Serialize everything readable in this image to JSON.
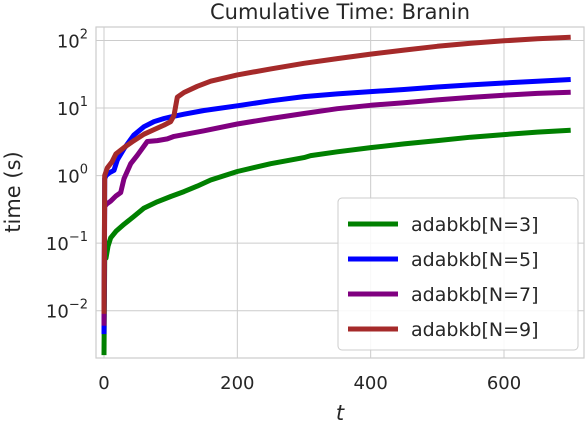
{
  "chart_data": {
    "type": "line",
    "title": "Cumulative Time: Branin",
    "xlabel": "t",
    "ylabel": "time (s)",
    "xlim": [
      -12,
      720
    ],
    "ylim_log10": [
      -2.7,
      2.2
    ],
    "yscale": "log",
    "grid": true,
    "legend_position": "lower-right",
    "x_ticks": [
      0,
      200,
      400,
      600
    ],
    "x_tick_labels": [
      "0",
      "200",
      "400",
      "600"
    ],
    "y_ticks_log10": [
      -2,
      -1,
      0,
      1,
      2
    ],
    "y_tick_labels": [
      {
        "base": "10",
        "exp": "−2"
      },
      {
        "base": "10",
        "exp": "−1"
      },
      {
        "base": "10",
        "exp": "0"
      },
      {
        "base": "10",
        "exp": "1"
      },
      {
        "base": "10",
        "exp": "2"
      }
    ],
    "series": [
      {
        "name": "adabkb[N=3]",
        "color": "#008000",
        "points": [
          [
            0,
            0.0022
          ],
          [
            1,
            0.06
          ],
          [
            3,
            0.06
          ],
          [
            6,
            0.09
          ],
          [
            10,
            0.12
          ],
          [
            18,
            0.15
          ],
          [
            30,
            0.19
          ],
          [
            45,
            0.25
          ],
          [
            60,
            0.33
          ],
          [
            80,
            0.41
          ],
          [
            100,
            0.49
          ],
          [
            120,
            0.58
          ],
          [
            140,
            0.7
          ],
          [
            160,
            0.86
          ],
          [
            200,
            1.15
          ],
          [
            250,
            1.5
          ],
          [
            300,
            1.85
          ],
          [
            310,
            1.98
          ],
          [
            350,
            2.25
          ],
          [
            400,
            2.6
          ],
          [
            450,
            2.95
          ],
          [
            500,
            3.3
          ],
          [
            550,
            3.7
          ],
          [
            600,
            4.05
          ],
          [
            650,
            4.4
          ],
          [
            700,
            4.7
          ]
        ]
      },
      {
        "name": "adabkb[N=5]",
        "color": "#0000ff",
        "points": [
          [
            0,
            0.0045
          ],
          [
            1,
            0.9
          ],
          [
            3,
            1.0
          ],
          [
            8,
            1.1
          ],
          [
            15,
            1.2
          ],
          [
            20,
            1.7
          ],
          [
            30,
            2.5
          ],
          [
            45,
            4.0
          ],
          [
            60,
            5.3
          ],
          [
            75,
            6.3
          ],
          [
            90,
            7.0
          ],
          [
            100,
            7.4
          ],
          [
            120,
            8.1
          ],
          [
            150,
            9.2
          ],
          [
            200,
            10.8
          ],
          [
            250,
            12.8
          ],
          [
            300,
            14.8
          ],
          [
            350,
            16.2
          ],
          [
            400,
            17.5
          ],
          [
            450,
            18.8
          ],
          [
            500,
            20.5
          ],
          [
            550,
            22.0
          ],
          [
            600,
            23.5
          ],
          [
            650,
            25.0
          ],
          [
            700,
            26.5
          ]
        ]
      },
      {
        "name": "adabkb[N=7]",
        "color": "#800080",
        "points": [
          [
            0,
            0.006
          ],
          [
            1,
            0.35
          ],
          [
            4,
            0.38
          ],
          [
            10,
            0.42
          ],
          [
            18,
            0.5
          ],
          [
            25,
            0.56
          ],
          [
            30,
            0.9
          ],
          [
            40,
            1.5
          ],
          [
            50,
            2.0
          ],
          [
            65,
            3.2
          ],
          [
            80,
            3.3
          ],
          [
            95,
            3.5
          ],
          [
            105,
            3.8
          ],
          [
            150,
            4.6
          ],
          [
            200,
            5.8
          ],
          [
            250,
            7.0
          ],
          [
            300,
            8.3
          ],
          [
            350,
            9.8
          ],
          [
            400,
            11.0
          ],
          [
            450,
            12.0
          ],
          [
            500,
            13.2
          ],
          [
            550,
            14.4
          ],
          [
            600,
            15.5
          ],
          [
            650,
            16.5
          ],
          [
            700,
            17.2
          ]
        ]
      },
      {
        "name": "adabkb[N=9]",
        "color": "#a52a2a",
        "points": [
          [
            0,
            0.009
          ],
          [
            1,
            1.0
          ],
          [
            5,
            1.3
          ],
          [
            12,
            1.6
          ],
          [
            18,
            2.1
          ],
          [
            30,
            2.6
          ],
          [
            45,
            3.3
          ],
          [
            60,
            4.1
          ],
          [
            75,
            4.8
          ],
          [
            90,
            5.6
          ],
          [
            100,
            6.3
          ],
          [
            105,
            7.8
          ],
          [
            110,
            14.5
          ],
          [
            120,
            17.0
          ],
          [
            140,
            21.0
          ],
          [
            160,
            25.0
          ],
          [
            200,
            31.0
          ],
          [
            250,
            38.0
          ],
          [
            300,
            46.0
          ],
          [
            350,
            54.0
          ],
          [
            400,
            63.0
          ],
          [
            450,
            72.0
          ],
          [
            500,
            82.0
          ],
          [
            550,
            91.0
          ],
          [
            600,
            99.0
          ],
          [
            650,
            106.0
          ],
          [
            700,
            112.0
          ]
        ]
      }
    ]
  }
}
